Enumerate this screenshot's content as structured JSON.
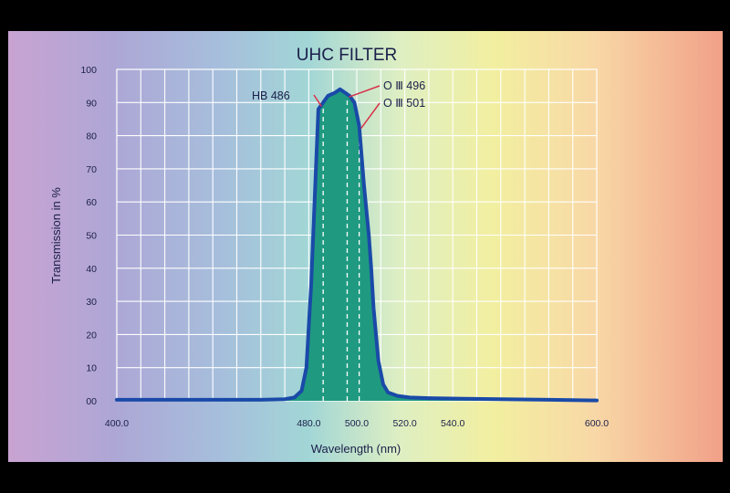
{
  "chart_data": {
    "type": "area",
    "title": "UHC FILTER",
    "xlabel": "Wavelength (nm)",
    "ylabel": "Transmission in %",
    "xlim": [
      400,
      600
    ],
    "ylim": [
      0,
      100
    ],
    "x_ticks": [
      {
        "value": 400,
        "label": "400.0"
      },
      {
        "value": 480,
        "label": "480.0"
      },
      {
        "value": 500,
        "label": "500.0"
      },
      {
        "value": 520,
        "label": "520.0"
      },
      {
        "value": 540,
        "label": "540.0"
      },
      {
        "value": 600,
        "label": "600.0"
      }
    ],
    "y_ticks": [
      {
        "value": 0,
        "label": "00"
      },
      {
        "value": 10,
        "label": "10"
      },
      {
        "value": 20,
        "label": "20"
      },
      {
        "value": 30,
        "label": "30"
      },
      {
        "value": 40,
        "label": "40"
      },
      {
        "value": 50,
        "label": "50"
      },
      {
        "value": 60,
        "label": "60"
      },
      {
        "value": 70,
        "label": "70"
      },
      {
        "value": 80,
        "label": "80"
      },
      {
        "value": 90,
        "label": "90"
      },
      {
        "value": 100,
        "label": "100"
      }
    ],
    "grid": true,
    "background": "visible-spectrum gradient (violet to red)",
    "series": [
      {
        "x": [
          400,
          420,
          440,
          460,
          470,
          474,
          477,
          479,
          481,
          484,
          488,
          491,
          493,
          495,
          497,
          499,
          501,
          503,
          505,
          506,
          507,
          509,
          511,
          513,
          517,
          522,
          530,
          545,
          560,
          580,
          600
        ],
        "y": [
          0.3,
          0.3,
          0.3,
          0.3,
          0.5,
          1,
          3,
          10,
          35,
          88,
          92,
          93,
          94,
          93,
          92,
          90,
          83,
          65,
          50,
          40,
          28,
          12,
          5,
          2.5,
          1.5,
          1,
          0.8,
          0.6,
          0.5,
          0.3,
          0.1
        ],
        "color": "#1a4aa8",
        "fill": "#1f9a80"
      }
    ],
    "annotations": [
      {
        "label": "HB 486",
        "x": 486,
        "side": "left"
      },
      {
        "label": "O Ⅲ 496",
        "x": 496,
        "side": "right"
      },
      {
        "label": "O Ⅲ 501",
        "x": 501,
        "side": "right"
      }
    ]
  }
}
